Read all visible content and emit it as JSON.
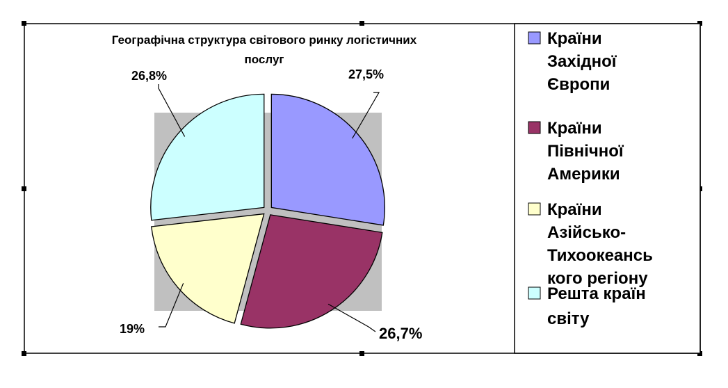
{
  "chart_data": {
    "type": "pie",
    "title_lines": [
      "Географічна структура світового ринку логістичних",
      "послуг"
    ],
    "categories": [
      "Країни Західної Європи",
      "Країни Північної Америки",
      "Країни Азійсько-Тихоокеанського регіону",
      "Решта країн світу"
    ],
    "values": [
      27.5,
      26.7,
      19,
      26.8
    ],
    "labels": [
      "27,5%",
      "26,7%",
      "19%",
      "26,8%"
    ],
    "colors": [
      "#9999ff",
      "#993366",
      "#ffffcc",
      "#ccffff"
    ],
    "exploded": true,
    "plot_background": "#c0c0c0",
    "legend_position": "right",
    "legend": [
      {
        "lines": [
          "Країни",
          "Західної",
          "Європи"
        ],
        "color": "#9999ff"
      },
      {
        "lines": [
          "Країни",
          "Північної",
          "Америки"
        ],
        "color": "#993366"
      },
      {
        "lines": [
          "Країни",
          "Азійсько-",
          "Тихоокеансь",
          "кого регіону"
        ],
        "color": "#ffffcc"
      },
      {
        "lines": [
          "Решта країн",
          "світу"
        ],
        "color": "#ccffff"
      }
    ]
  }
}
